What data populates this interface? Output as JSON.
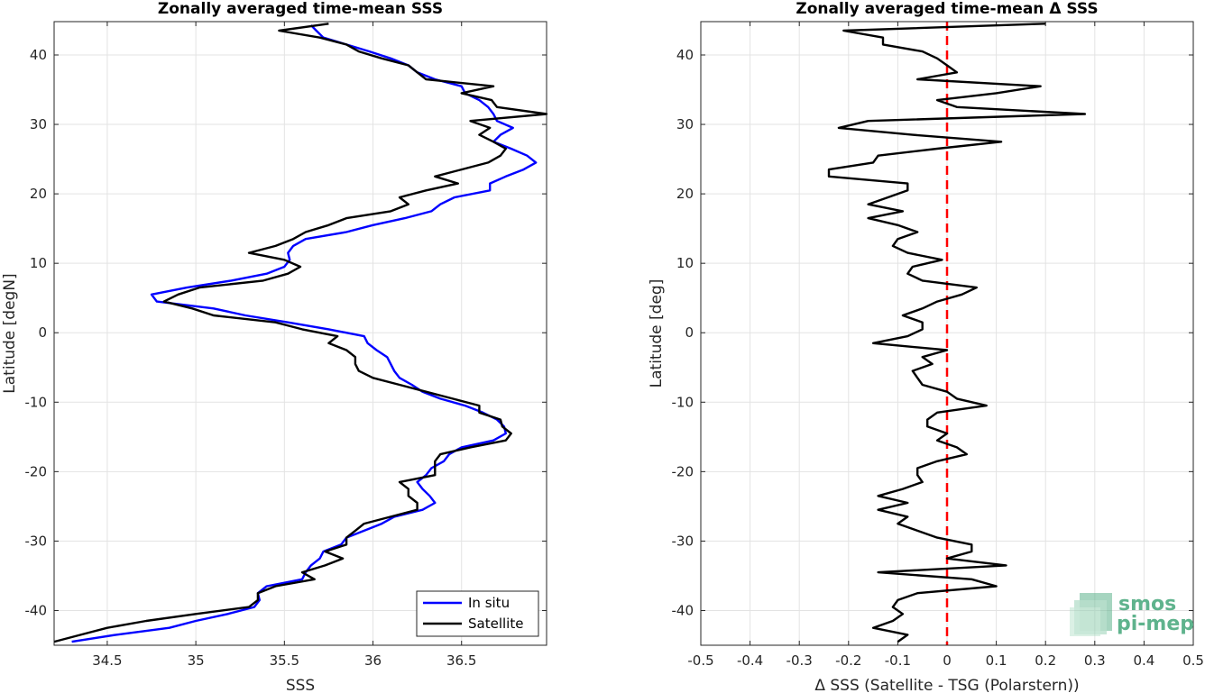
{
  "chart_data": [
    {
      "type": "line",
      "title": "Zonally averaged time-mean SSS",
      "xlabel": "SSS",
      "ylabel": "Latitude [degN]",
      "xlim": [
        34.2,
        36.98
      ],
      "ylim": [
        -45,
        44.8
      ],
      "xticks": [
        34.5,
        35,
        35.5,
        36,
        36.5
      ],
      "xtick_labels": [
        "34.5",
        "35",
        "35.5",
        "36",
        "36.5"
      ],
      "yticks": [
        -40,
        -30,
        -20,
        -10,
        0,
        10,
        20,
        30,
        40
      ],
      "ytick_labels": [
        "-40",
        "-30",
        "-20",
        "-10",
        "0",
        "10",
        "20",
        "30",
        "40"
      ],
      "grid": true,
      "legend": {
        "placement": "bottom-right",
        "entries": [
          "In situ",
          "Satellite"
        ]
      },
      "series": [
        {
          "name": "In situ",
          "color": "#0000ff",
          "y": [
            44.3,
            43.5,
            42.5,
            41.5,
            40.5,
            39.5,
            38.5,
            37.5,
            36.5,
            35.5,
            34.5,
            33.5,
            32.5,
            31.5,
            30.5,
            29.5,
            28.5,
            27.5,
            26.5,
            25.5,
            24.5,
            23.5,
            22.5,
            21.5,
            20.5,
            19.5,
            18.5,
            17.5,
            16.5,
            15.5,
            14.5,
            13.5,
            12.5,
            11.5,
            10.5,
            9.5,
            8.5,
            7.5,
            6.5,
            5.5,
            4.5,
            3.5,
            2.5,
            1.5,
            0.5,
            -0.5,
            -1.5,
            -2.5,
            -3.5,
            -4.5,
            -5.5,
            -6.5,
            -7.5,
            -8.5,
            -9.5,
            -10.5,
            -11.5,
            -12.5,
            -13.5,
            -14.5,
            -15.5,
            -16.5,
            -17.5,
            -18.5,
            -19.5,
            -20.5,
            -21.5,
            -22.5,
            -23.5,
            -24.5,
            -25.5,
            -26.5,
            -27.5,
            -28.5,
            -29.5,
            -30.5,
            -31.5,
            -32.5,
            -33.5,
            -34.5,
            -35.5,
            -36.5,
            -37.5,
            -38.5,
            -39.5,
            -40.5,
            -41.5,
            -42.5,
            -43.5,
            -44.5
          ],
          "x": [
            35.65,
            35.68,
            35.72,
            35.85,
            35.98,
            36.1,
            36.2,
            36.25,
            36.35,
            36.5,
            36.52,
            36.6,
            36.65,
            36.68,
            36.7,
            36.79,
            36.72,
            36.68,
            36.78,
            36.87,
            36.92,
            36.85,
            36.75,
            36.66,
            36.66,
            36.46,
            36.38,
            36.33,
            36.18,
            36.0,
            35.85,
            35.62,
            35.55,
            35.52,
            35.53,
            35.5,
            35.4,
            35.2,
            34.95,
            34.75,
            34.78,
            35.1,
            35.28,
            35.52,
            35.75,
            35.95,
            35.97,
            36.02,
            36.08,
            36.1,
            36.12,
            36.15,
            36.22,
            36.28,
            36.38,
            36.52,
            36.62,
            36.7,
            36.74,
            36.75,
            36.68,
            36.5,
            36.43,
            36.4,
            36.33,
            36.3,
            36.25,
            36.28,
            36.32,
            36.35,
            36.28,
            36.12,
            36.05,
            35.95,
            35.85,
            35.82,
            35.72,
            35.7,
            35.65,
            35.62,
            35.6,
            35.4,
            35.35,
            35.36,
            35.33,
            35.18,
            35.0,
            34.85,
            34.55,
            34.3
          ]
        },
        {
          "name": "Satellite",
          "color": "#000000",
          "y": [
            44.5,
            43.5,
            42.5,
            41.5,
            40.5,
            39.5,
            38.5,
            37.5,
            36.5,
            35.5,
            34.5,
            33.5,
            32.5,
            31.5,
            30.5,
            29.5,
            28.5,
            27.5,
            26.5,
            25.5,
            24.5,
            23.5,
            22.5,
            21.5,
            20.5,
            19.5,
            18.5,
            17.5,
            16.5,
            15.5,
            14.5,
            13.5,
            12.5,
            11.5,
            10.5,
            9.5,
            8.5,
            7.5,
            6.5,
            5.5,
            4.5,
            3.5,
            2.5,
            1.5,
            0.5,
            -0.5,
            -1.5,
            -2.5,
            -3.5,
            -4.5,
            -5.5,
            -6.5,
            -7.5,
            -8.5,
            -9.5,
            -10.5,
            -11.5,
            -12.5,
            -13.5,
            -14.5,
            -15.5,
            -16.5,
            -17.5,
            -18.5,
            -19.5,
            -20.5,
            -21.5,
            -22.5,
            -23.5,
            -24.5,
            -25.5,
            -26.5,
            -27.5,
            -28.5,
            -29.5,
            -30.5,
            -31.5,
            -32.5,
            -33.5,
            -34.5,
            -35.5,
            -36.5,
            -37.5,
            -38.5,
            -39.5,
            -40.5,
            -41.5,
            -42.5,
            -43.5,
            -44.5
          ],
          "x": [
            35.75,
            35.47,
            35.7,
            35.85,
            35.92,
            36.05,
            36.2,
            36.25,
            36.3,
            36.68,
            36.5,
            36.67,
            36.7,
            36.98,
            36.55,
            36.66,
            36.6,
            36.68,
            36.75,
            36.72,
            36.65,
            36.5,
            36.35,
            36.48,
            36.3,
            36.15,
            36.2,
            36.1,
            35.85,
            35.75,
            35.62,
            35.55,
            35.45,
            35.3,
            35.5,
            35.59,
            35.52,
            35.38,
            35.02,
            34.9,
            34.82,
            34.98,
            35.1,
            35.45,
            35.6,
            35.8,
            35.75,
            35.85,
            35.9,
            35.9,
            35.92,
            36.0,
            36.15,
            36.3,
            36.45,
            36.6,
            36.6,
            36.72,
            36.73,
            36.78,
            36.75,
            36.55,
            36.38,
            36.35,
            36.35,
            36.35,
            36.15,
            36.2,
            36.2,
            36.25,
            36.25,
            36.1,
            35.95,
            35.9,
            35.85,
            35.85,
            35.73,
            35.83,
            35.73,
            35.6,
            35.67,
            35.45,
            35.35,
            35.35,
            35.3,
            35.0,
            34.72,
            34.5,
            34.35,
            34.2
          ]
        }
      ]
    },
    {
      "type": "line",
      "title": "Zonally averaged time-mean Δ SSS",
      "xlabel": "Δ SSS (Satellite - TSG (Polarstern))",
      "ylabel": "Latitude [deg]",
      "xlim": [
        -0.5,
        0.5
      ],
      "ylim": [
        -45,
        44.8
      ],
      "xticks": [
        -0.5,
        -0.4,
        -0.3,
        -0.2,
        -0.1,
        0,
        0.1,
        0.2,
        0.3,
        0.4,
        0.5
      ],
      "xtick_labels": [
        "-0.5",
        "-0.4",
        "-0.3",
        "-0.2",
        "-0.1",
        "0",
        "0.1",
        "0.2",
        "0.3",
        "0.4",
        "0.5"
      ],
      "yticks": [
        -40,
        -30,
        -20,
        -10,
        0,
        10,
        20,
        30,
        40
      ],
      "ytick_labels": [
        "-40",
        "-30",
        "-20",
        "-10",
        "0",
        "10",
        "20",
        "30",
        "40"
      ],
      "grid": true,
      "reference_line": {
        "x": 0,
        "color": "#ff0000",
        "style": "dashed"
      },
      "series": [
        {
          "color": "#000000",
          "y": [
            44.5,
            43.5,
            42.5,
            41.5,
            40.5,
            39.5,
            38.5,
            37.5,
            36.5,
            35.5,
            34.5,
            33.5,
            32.5,
            31.5,
            30.5,
            29.5,
            28.5,
            27.5,
            26.5,
            25.5,
            24.5,
            23.5,
            22.5,
            21.5,
            20.5,
            19.5,
            18.5,
            17.5,
            16.5,
            15.5,
            14.5,
            13.5,
            12.5,
            11.5,
            10.5,
            9.5,
            8.5,
            7.5,
            6.5,
            5.5,
            4.5,
            3.5,
            2.5,
            1.5,
            0.5,
            -0.5,
            -1.5,
            -2.5,
            -3.5,
            -4.5,
            -5.5,
            -6.5,
            -7.5,
            -8.5,
            -9.5,
            -10.5,
            -11.5,
            -12.5,
            -13.5,
            -14.5,
            -15.5,
            -16.5,
            -17.5,
            -18.5,
            -19.5,
            -20.5,
            -21.5,
            -22.5,
            -23.5,
            -24.5,
            -25.5,
            -26.5,
            -27.5,
            -28.5,
            -29.5,
            -30.5,
            -31.5,
            -32.5,
            -33.5,
            -34.5,
            -35.5,
            -36.5,
            -37.5,
            -38.5,
            -39.5,
            -40.5,
            -41.5,
            -42.5,
            -43.5,
            -44.5
          ],
          "x": [
            0.2,
            -0.21,
            -0.13,
            -0.13,
            -0.05,
            -0.02,
            0.0,
            0.02,
            -0.06,
            0.19,
            0.1,
            -0.02,
            0.02,
            0.28,
            -0.16,
            -0.22,
            -0.07,
            0.11,
            -0.02,
            -0.14,
            -0.15,
            -0.24,
            -0.24,
            -0.08,
            -0.08,
            -0.12,
            -0.16,
            -0.09,
            -0.16,
            -0.1,
            -0.06,
            -0.1,
            -0.11,
            -0.08,
            -0.01,
            -0.07,
            -0.08,
            -0.05,
            0.06,
            0.03,
            -0.02,
            -0.05,
            -0.09,
            -0.05,
            -0.05,
            -0.08,
            -0.15,
            0.0,
            -0.05,
            -0.03,
            -0.07,
            -0.06,
            -0.05,
            0.0,
            0.02,
            0.08,
            -0.02,
            -0.04,
            -0.04,
            0.0,
            -0.02,
            0.02,
            0.04,
            -0.02,
            -0.06,
            -0.06,
            -0.05,
            -0.09,
            -0.14,
            -0.08,
            -0.14,
            -0.08,
            -0.1,
            -0.06,
            -0.02,
            0.05,
            0.05,
            0.0,
            0.12,
            -0.14,
            0.05,
            0.1,
            -0.06,
            -0.1,
            -0.11,
            -0.09,
            -0.11,
            -0.15,
            -0.08,
            -0.1
          ]
        }
      ]
    }
  ],
  "logo": {
    "line1": "smos",
    "line2": "pi-mep",
    "color": "#5fb38d"
  }
}
